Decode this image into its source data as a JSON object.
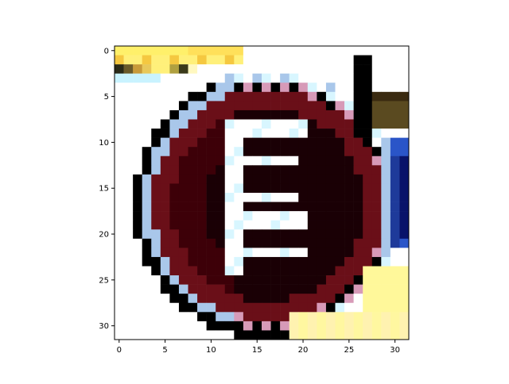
{
  "figure": {
    "image_description_kind": "pixelated 32x32 image rendered with matplotlib imshow",
    "axes": {
      "x_ticks": [
        "0",
        "5",
        "10",
        "15",
        "20",
        "25",
        "30"
      ],
      "y_ticks": [
        "0",
        "5",
        "10",
        "15",
        "20",
        "25",
        "30"
      ],
      "x_range": [
        -0.5,
        31.5
      ],
      "y_range": [
        31.5,
        -0.5
      ]
    },
    "colors": {
      "background": "#ffffff",
      "axis": "#000000",
      "sign_dark": "#1a0005",
      "sign_red_dark": "#3d0008",
      "sign_maroon": "#6a0f18",
      "outline_black": "#000000",
      "light_cyan": "#d8f6ff",
      "light_blue": "#a9c7ea",
      "pink": "#d79ab8",
      "yellow": "#fff07a",
      "orange": "#f0b040",
      "blue": "#2a55c8",
      "navy": "#08136a"
    }
  }
}
